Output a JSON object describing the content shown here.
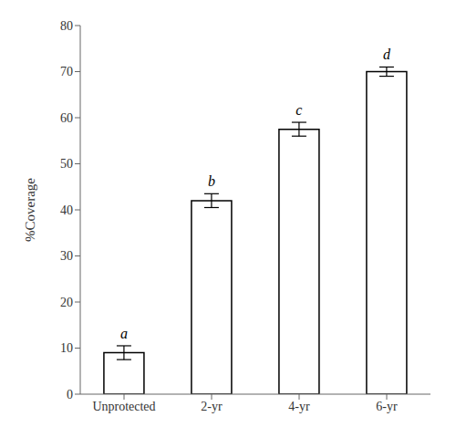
{
  "chart_data": {
    "type": "bar",
    "categories": [
      "Unprotected",
      "2-yr",
      "4-yr",
      "6-yr"
    ],
    "values": [
      9.0,
      42.0,
      57.5,
      70.0
    ],
    "errors": [
      1.5,
      1.5,
      1.5,
      1.0
    ],
    "annotations": [
      "a",
      "b",
      "c",
      "d"
    ],
    "color": "#ffffff",
    "ylabel": "%Coverage",
    "ylim": [
      0,
      80
    ],
    "yticks": [
      0,
      10,
      20,
      30,
      40,
      50,
      60,
      70,
      80
    ],
    "grid": false
  }
}
